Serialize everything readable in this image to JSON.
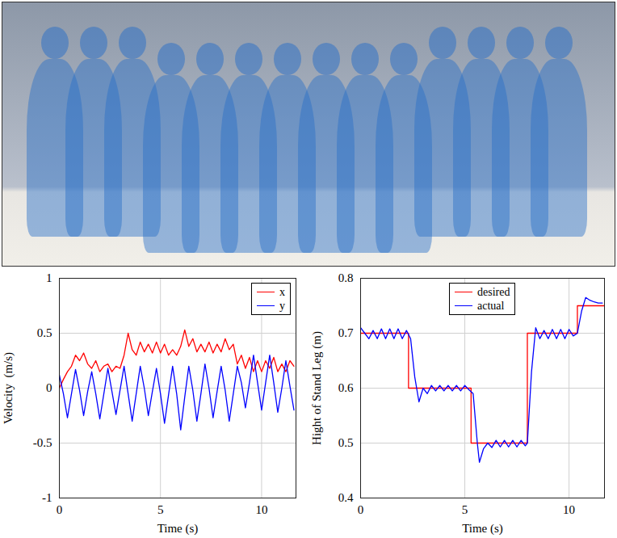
{
  "chart_data": [
    {
      "type": "line",
      "xlabel": "Time (s)",
      "ylabel": "Velocity  (m/s)",
      "xlim": [
        0,
        11.7
      ],
      "ylim": [
        -1,
        1
      ],
      "xticks": [
        0,
        5,
        10
      ],
      "yticks": [
        -1,
        -0.5,
        0,
        0.5,
        1
      ],
      "grid": true,
      "legend": "top-right",
      "x": [
        0,
        0.2,
        0.4,
        0.6,
        0.8,
        1.0,
        1.2,
        1.4,
        1.6,
        1.8,
        2.0,
        2.2,
        2.4,
        2.6,
        2.8,
        3.0,
        3.2,
        3.4,
        3.6,
        3.8,
        4.0,
        4.2,
        4.4,
        4.6,
        4.8,
        5.0,
        5.2,
        5.4,
        5.6,
        5.8,
        6.0,
        6.2,
        6.4,
        6.6,
        6.8,
        7.0,
        7.2,
        7.4,
        7.6,
        7.8,
        8.0,
        8.2,
        8.4,
        8.6,
        8.8,
        9.0,
        9.2,
        9.4,
        9.6,
        9.8,
        10.0,
        10.2,
        10.4,
        10.6,
        10.8,
        11.0,
        11.2,
        11.4,
        11.6
      ],
      "series": [
        {
          "name": "x",
          "color": "#ff0000",
          "line_style": "solid",
          "values": [
            0.0,
            0.08,
            0.15,
            0.2,
            0.3,
            0.25,
            0.32,
            0.22,
            0.18,
            0.25,
            0.15,
            0.2,
            0.22,
            0.15,
            0.2,
            0.18,
            0.3,
            0.5,
            0.35,
            0.3,
            0.42,
            0.33,
            0.4,
            0.32,
            0.42,
            0.32,
            0.4,
            0.3,
            0.35,
            0.3,
            0.38,
            0.53,
            0.38,
            0.45,
            0.33,
            0.4,
            0.33,
            0.42,
            0.32,
            0.4,
            0.33,
            0.45,
            0.35,
            0.4,
            0.22,
            0.3,
            0.18,
            0.28,
            0.15,
            0.25,
            0.15,
            0.25,
            0.18,
            0.28,
            0.15,
            0.22,
            0.15,
            0.25,
            0.2
          ]
        },
        {
          "name": "y",
          "color": "#0000ff",
          "line_style": "solid",
          "values": [
            0.12,
            -0.05,
            -0.27,
            -0.05,
            0.17,
            -0.02,
            -0.25,
            -0.03,
            0.15,
            -0.05,
            -0.28,
            -0.05,
            0.18,
            -0.03,
            -0.24,
            -0.02,
            0.2,
            -0.05,
            -0.3,
            -0.05,
            0.2,
            0.0,
            -0.25,
            -0.03,
            0.18,
            -0.05,
            -0.32,
            -0.06,
            0.2,
            -0.05,
            -0.38,
            -0.08,
            0.2,
            -0.02,
            -0.3,
            -0.05,
            0.22,
            0.0,
            -0.27,
            -0.03,
            0.2,
            -0.02,
            -0.3,
            -0.05,
            0.2,
            0.05,
            -0.18,
            0.05,
            0.3,
            0.05,
            -0.2,
            0.05,
            0.3,
            0.05,
            -0.22,
            0.0,
            0.25,
            0.02,
            -0.2
          ]
        }
      ]
    },
    {
      "type": "line",
      "xlabel": "Time (s)",
      "ylabel": "Hight of Stand Leg (m)",
      "xlim": [
        0,
        11.7
      ],
      "ylim": [
        0.4,
        0.8
      ],
      "xticks": [
        0,
        5,
        10
      ],
      "yticks": [
        0.4,
        0.5,
        0.6,
        0.7,
        0.8
      ],
      "grid": true,
      "legend": "top",
      "series": [
        {
          "name": "desired",
          "color": "#ff0000",
          "line_style": "solid",
          "x": [
            0,
            2.3,
            2.3,
            5.3,
            5.3,
            8.0,
            8.0,
            10.4,
            10.4,
            11.7
          ],
          "values": [
            0.7,
            0.7,
            0.6,
            0.6,
            0.5,
            0.5,
            0.7,
            0.7,
            0.75,
            0.75
          ]
        },
        {
          "name": "actual",
          "color": "#0000ff",
          "line_style": "solid",
          "x": [
            0,
            0.2,
            0.4,
            0.6,
            0.8,
            1.0,
            1.2,
            1.4,
            1.6,
            1.8,
            2.0,
            2.2,
            2.4,
            2.6,
            2.8,
            3.0,
            3.2,
            3.4,
            3.6,
            3.8,
            4.0,
            4.2,
            4.4,
            4.6,
            4.8,
            5.0,
            5.2,
            5.4,
            5.6,
            5.7,
            5.9,
            6.1,
            6.3,
            6.5,
            6.7,
            6.9,
            7.1,
            7.3,
            7.5,
            7.7,
            7.9,
            8.0,
            8.2,
            8.4,
            8.6,
            8.8,
            9.0,
            9.2,
            9.4,
            9.6,
            9.8,
            10.0,
            10.2,
            10.4,
            10.6,
            10.8,
            11.0,
            11.2,
            11.4,
            11.6
          ],
          "values": [
            0.71,
            0.7,
            0.69,
            0.705,
            0.69,
            0.708,
            0.69,
            0.708,
            0.69,
            0.708,
            0.69,
            0.705,
            0.69,
            0.62,
            0.575,
            0.6,
            0.59,
            0.605,
            0.595,
            0.605,
            0.595,
            0.605,
            0.595,
            0.605,
            0.595,
            0.605,
            0.597,
            0.59,
            0.5,
            0.465,
            0.49,
            0.5,
            0.492,
            0.505,
            0.493,
            0.505,
            0.493,
            0.505,
            0.493,
            0.505,
            0.495,
            0.5,
            0.63,
            0.71,
            0.69,
            0.705,
            0.69,
            0.707,
            0.69,
            0.707,
            0.69,
            0.707,
            0.695,
            0.7,
            0.74,
            0.765,
            0.76,
            0.757,
            0.755,
            0.755
          ]
        }
      ]
    }
  ]
}
